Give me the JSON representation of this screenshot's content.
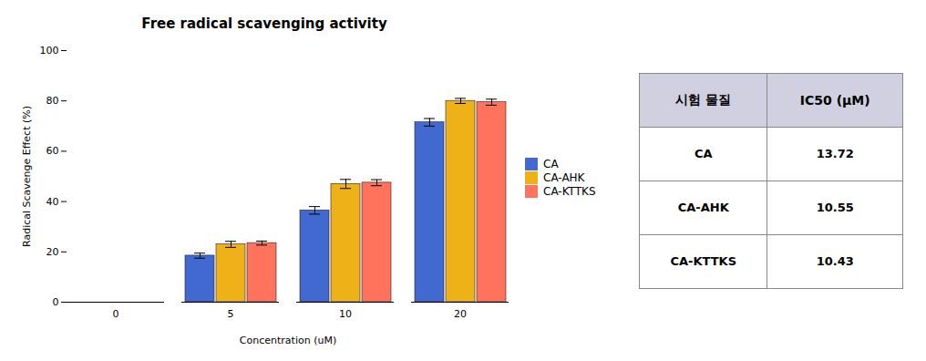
{
  "chart_data": {
    "type": "bar",
    "title": "Free radical scavenging activity",
    "xlabel": "Concentration (uM)",
    "ylabel": "Radical Scavenge Effect (%)",
    "categories": [
      0,
      5,
      10,
      20
    ],
    "series": [
      {
        "name": "CA",
        "values": [
          0,
          18.5,
          36.5,
          71.5
        ],
        "errors": [
          0,
          1.0,
          1.5,
          1.5
        ]
      },
      {
        "name": "CA-AHK",
        "values": [
          0,
          23.0,
          47.0,
          80.0
        ],
        "errors": [
          0,
          1.2,
          1.8,
          1.0
        ]
      },
      {
        "name": "CA-KTTKS",
        "values": [
          0,
          23.5,
          47.5,
          79.5
        ],
        "errors": [
          0,
          0.8,
          1.2,
          1.2
        ]
      }
    ],
    "ylim": [
      0,
      100
    ],
    "yticks": [
      0,
      20,
      40,
      60,
      80,
      100
    ],
    "grid": false,
    "legend": "right",
    "table": {
      "columns": [
        "시험 물질",
        "IC50 (μM)"
      ],
      "rows": [
        [
          "CA",
          13.72
        ],
        [
          "CA-AHK",
          10.55
        ],
        [
          "CA-KTTKS",
          10.43
        ]
      ]
    }
  }
}
